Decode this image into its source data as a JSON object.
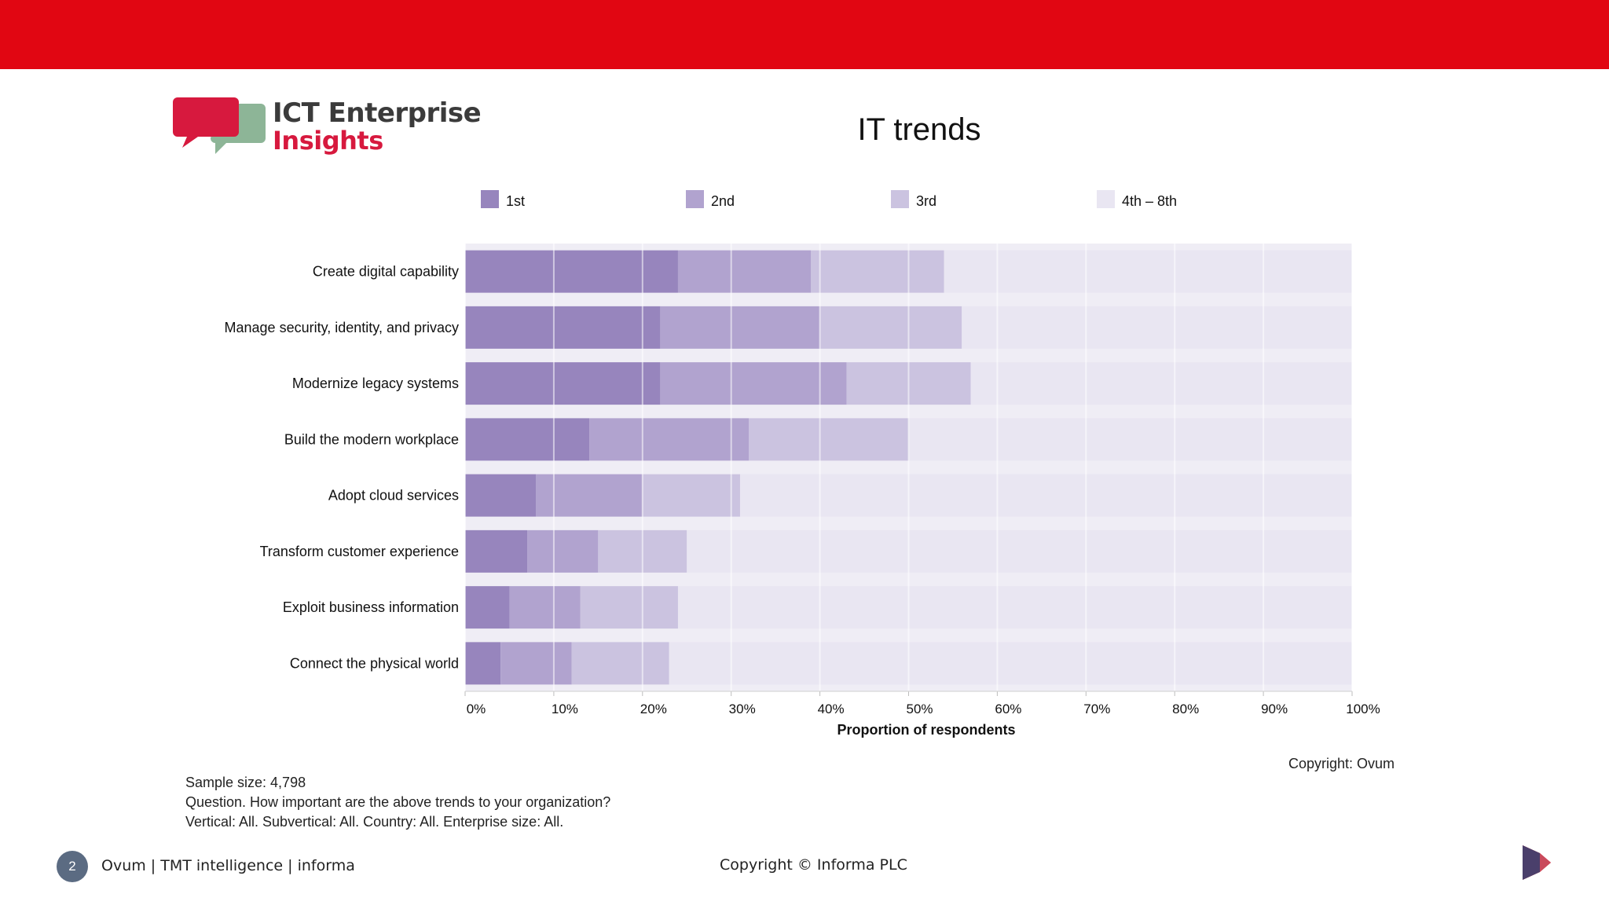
{
  "logo": {
    "line1": "ICT Enterprise",
    "line2": "Insights",
    "colors": {
      "red": "#d7193e",
      "green": "#8db597",
      "text": "#3b3b3b"
    }
  },
  "colors": {
    "top_bar": "#e10612",
    "series": [
      "#9785bd",
      "#b1a3cf",
      "#cbc3e0",
      "#e9e6f2"
    ],
    "grid": "#ffffff",
    "page_num_bg": "#5b6b82"
  },
  "chart_data": {
    "type": "bar",
    "orientation": "horizontal",
    "stacked": true,
    "title": "IT trends",
    "xlabel": "Proportion of respondents",
    "ylabel": "",
    "xlim": [
      0,
      100
    ],
    "x_ticks": [
      "0%",
      "10%",
      "20%",
      "30%",
      "40%",
      "50%",
      "60%",
      "70%",
      "80%",
      "90%",
      "100%"
    ],
    "legend_position": "top",
    "grid": true,
    "categories": [
      "Create digital capability",
      "Manage security, identity, and privacy",
      "Modernize legacy systems",
      "Build the modern workplace",
      "Adopt cloud services",
      "Transform customer experience",
      "Exploit business information",
      "Connect the physical world"
    ],
    "series": [
      {
        "name": "1st",
        "values": [
          24,
          22,
          22,
          14,
          8,
          7,
          5,
          4
        ]
      },
      {
        "name": "2nd",
        "values": [
          15,
          18,
          21,
          18,
          12,
          8,
          8,
          8
        ]
      },
      {
        "name": "3rd",
        "values": [
          15,
          16,
          14,
          18,
          11,
          10,
          11,
          11
        ]
      },
      {
        "name": "4th – 8th",
        "values": [
          46,
          44,
          43,
          50,
          69,
          75,
          76,
          77
        ]
      }
    ]
  },
  "notes": {
    "sample_size": "Sample size: 4,798",
    "question": "Question. How important are the above trends to your organization?",
    "filters": "Vertical: All.  Subvertical: All.  Country: All.  Enterprise size: All."
  },
  "copyright_ovum": "Copyright: Ovum",
  "footer": {
    "page_number": "2",
    "left": "Ovum | TMT intelligence | informa",
    "center": "Copyright © Informa PLC"
  },
  "icons": {
    "corner_logo": "informa-logo-icon"
  }
}
